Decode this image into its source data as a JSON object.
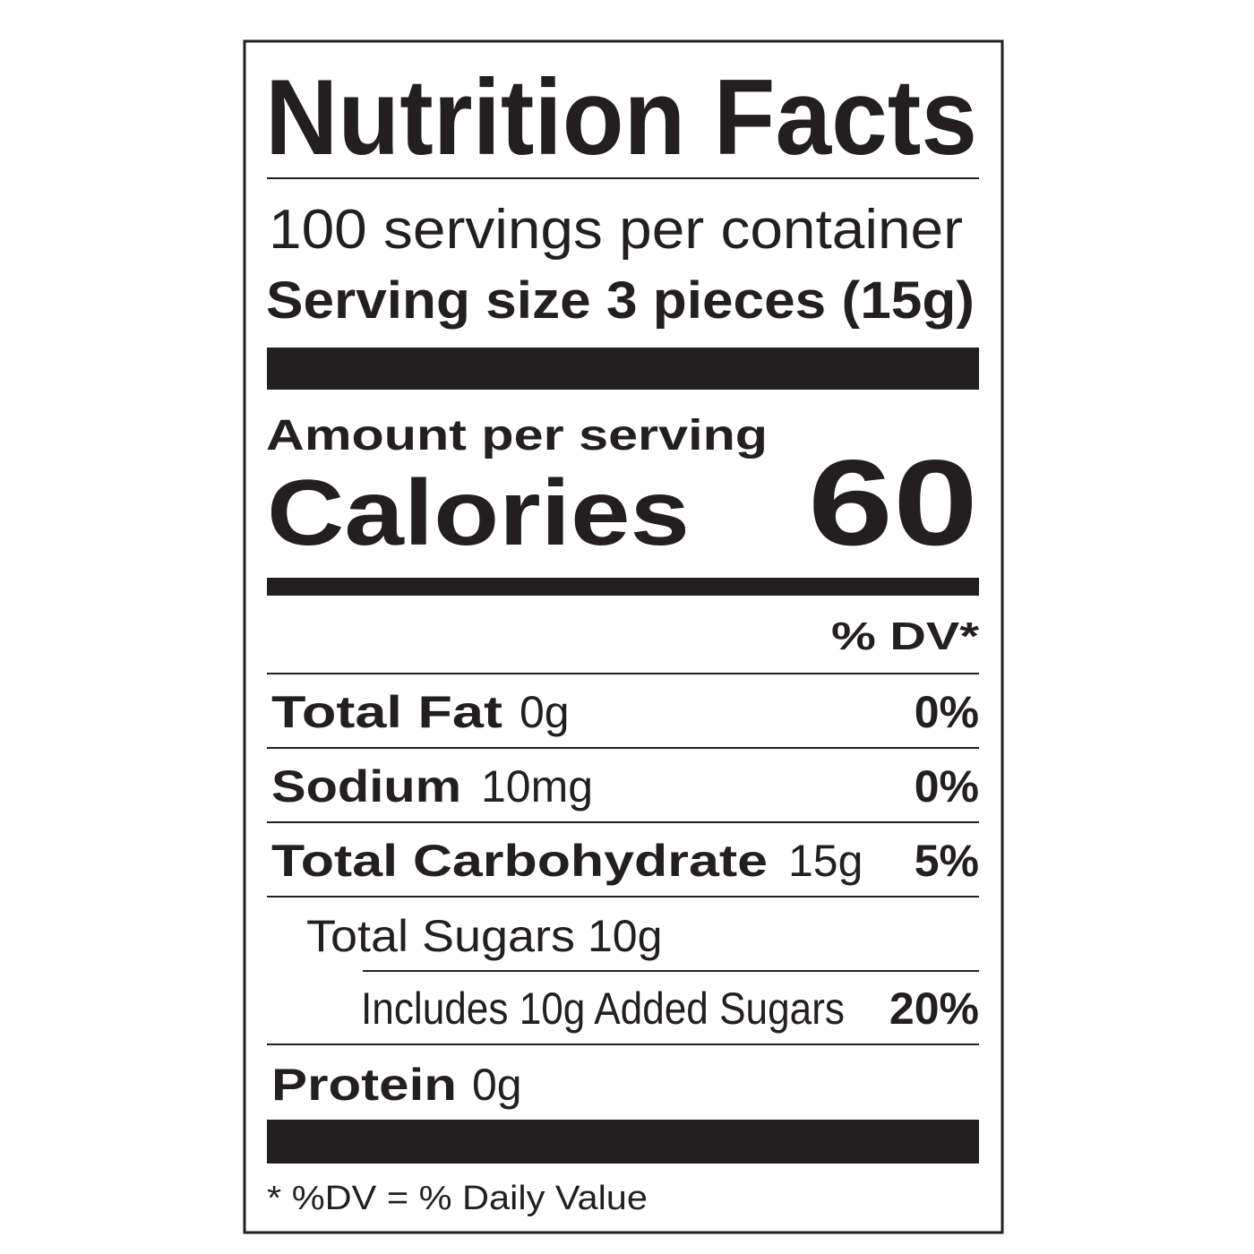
{
  "title": "Nutrition Facts",
  "servings": "100 servings per container",
  "serving_size": "Serving size 3 pieces (15g)",
  "amount_per_serving": "Amount per serving",
  "calories": {
    "label": "Calories",
    "value": "60"
  },
  "dv_header": "% DV*",
  "nutrients": [
    {
      "name": "Total Fat",
      "amount": "0g",
      "dv": "0%"
    },
    {
      "name": "Sodium",
      "amount": "10mg",
      "dv": "0%"
    },
    {
      "name": "Total Carbohydrate",
      "amount": "15g",
      "dv": "5%"
    },
    {
      "name": "Total Sugars",
      "amount": "10g"
    },
    {
      "name": "Includes 10g Added Sugars",
      "dv": "20%"
    },
    {
      "name": "Protein",
      "amount": "0g"
    }
  ],
  "footnote": "* %DV = % Daily Value"
}
